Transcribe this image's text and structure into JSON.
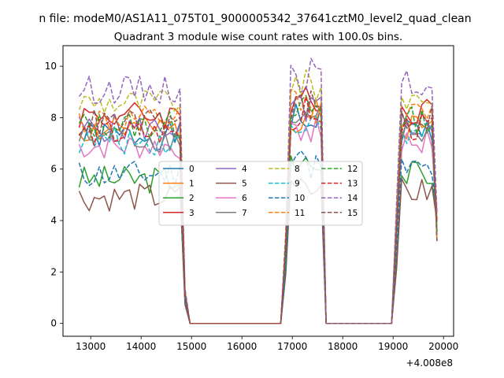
{
  "chart_data": {
    "type": "line",
    "suptitle": "n file: modeM0/AS1A11_075T01_9000005342_37641cztM0_level2_quad_clean",
    "title": "Quadrant 3 module wise count rates with 100.0s bins.",
    "xlabel": "",
    "ylabel": "",
    "x_offset_label": "+4.008e8",
    "xlim": [
      12450,
      20200
    ],
    "ylim": [
      -0.5,
      10.8
    ],
    "x_ticks": [
      13000,
      14000,
      15000,
      16000,
      17000,
      18000,
      19000,
      20000
    ],
    "x_tick_labels": [
      "13000",
      "14000",
      "15000",
      "16000",
      "17000",
      "18000",
      "19000",
      "20000"
    ],
    "y_ticks": [
      0,
      2,
      4,
      6,
      8,
      10
    ],
    "y_tick_labels": [
      "0",
      "2",
      "4",
      "6",
      "8",
      "10"
    ],
    "grid": false,
    "legend_position": "center",
    "legend_columns": 4,
    "segments": [
      {
        "start": 12770,
        "end": 14770
      },
      {
        "start": 16970,
        "end": 17570
      },
      {
        "start": 19170,
        "end": 19770
      }
    ],
    "series": [
      {
        "name": "0",
        "color": "#1f77b4",
        "dash": "solid",
        "level": 7.3,
        "seed": 1
      },
      {
        "name": "1",
        "color": "#ff7f0e",
        "dash": "solid",
        "level": 7.5,
        "seed": 2
      },
      {
        "name": "2",
        "color": "#2ca02c",
        "dash": "solid",
        "level": 5.6,
        "seed": 3
      },
      {
        "name": "3",
        "color": "#d62728",
        "dash": "solid",
        "level": 8.1,
        "seed": 4
      },
      {
        "name": "4",
        "color": "#9467bd",
        "dash": "solid",
        "level": 7.6,
        "seed": 5
      },
      {
        "name": "5",
        "color": "#8c564b",
        "dash": "solid",
        "level": 4.9,
        "seed": 6
      },
      {
        "name": "6",
        "color": "#e377c2",
        "dash": "solid",
        "level": 6.9,
        "seed": 7
      },
      {
        "name": "7",
        "color": "#7f7f7f",
        "dash": "solid",
        "level": 7.2,
        "seed": 8
      },
      {
        "name": "8",
        "color": "#bcbd22",
        "dash": "dashed",
        "level": 8.6,
        "seed": 9
      },
      {
        "name": "9",
        "color": "#17becf",
        "dash": "dashed",
        "level": 7.1,
        "seed": 10
      },
      {
        "name": "10",
        "color": "#1f77b4",
        "dash": "dashed",
        "level": 5.8,
        "seed": 11
      },
      {
        "name": "11",
        "color": "#ff7f0e",
        "dash": "dashed",
        "level": 7.9,
        "seed": 12
      },
      {
        "name": "12",
        "color": "#2ca02c",
        "dash": "dashed",
        "level": 7.7,
        "seed": 13
      },
      {
        "name": "13",
        "color": "#d62728",
        "dash": "dashed",
        "level": 7.4,
        "seed": 14
      },
      {
        "name": "14",
        "color": "#9467bd",
        "dash": "dashed",
        "level": 9.1,
        "seed": 15
      },
      {
        "name": "15",
        "color": "#8c564b",
        "dash": "dashed",
        "level": 7.8,
        "seed": 16
      }
    ]
  }
}
